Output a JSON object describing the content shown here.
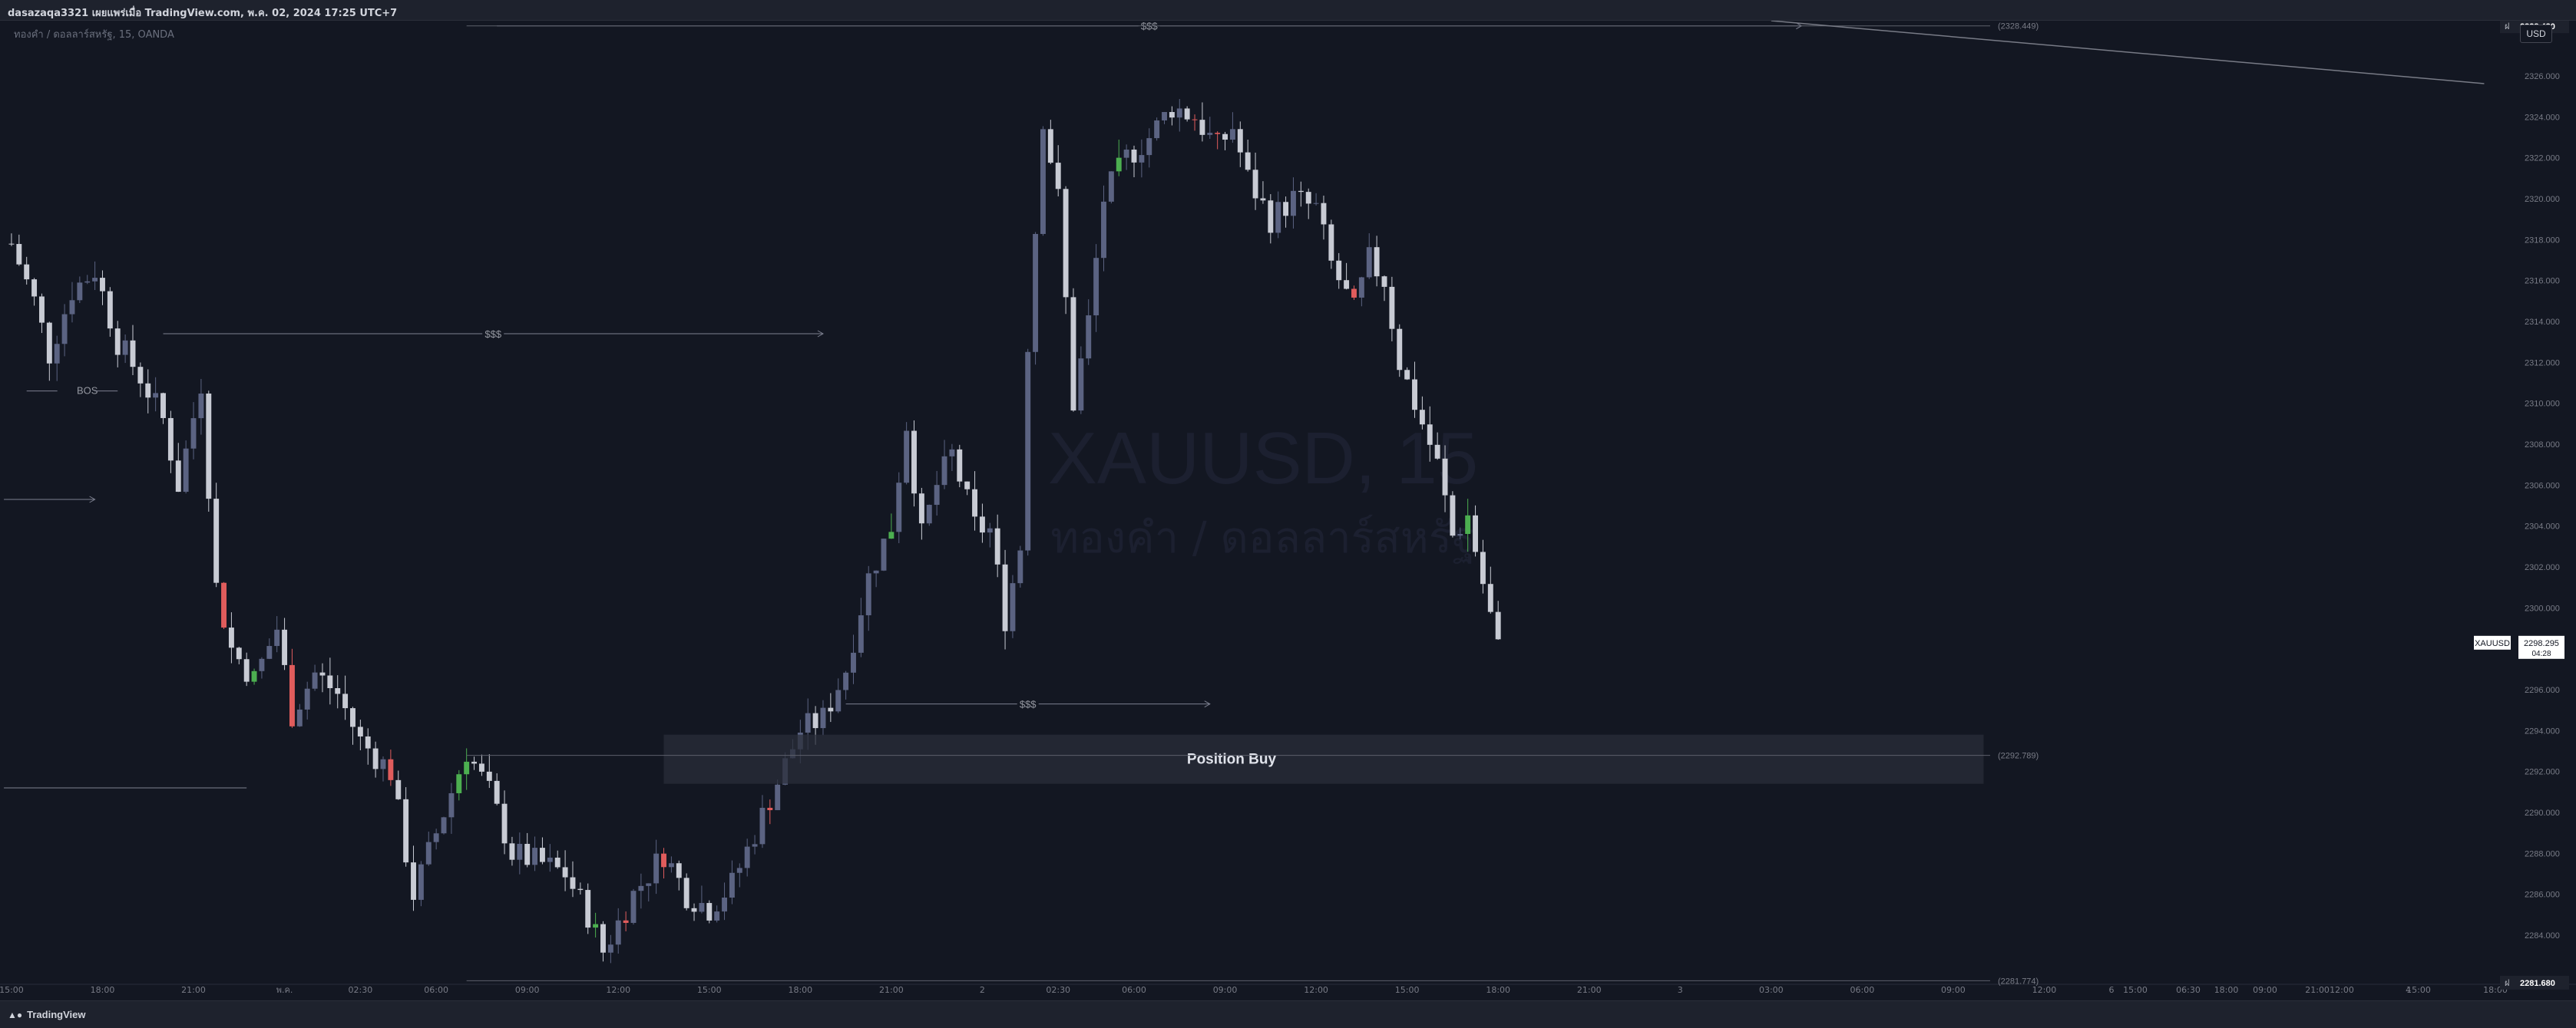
{
  "header": {
    "title": "dasazaqa3321 เผยแพร่เมื่อ TradingView.com, พ.ค. 02, 2024 17:25 UTC+7"
  },
  "legend": {
    "symbol_line": "ทองคำ / ดอลลาร์สหรัฐ, 15, OANDA"
  },
  "currency_button": "USD",
  "footer": {
    "brand": "TradingView"
  },
  "colors": {
    "background": "#131722",
    "candle_up": "#5b6382",
    "candle_down": "#c8cbd4",
    "accent_up": "#4caf50",
    "accent_down": "#e05c5c",
    "text": "#d1d4dc"
  },
  "chart_data": {
    "type": "candlestick",
    "symbol": "XAUUSD",
    "interval": "15",
    "exchange": "OANDA",
    "watermark": {
      "line1": "XAUUSD, 15",
      "line2": "ทองคำ / ดอลลาร์สหรัฐ"
    },
    "ylim": [
      2281.6,
      2328.7
    ],
    "yticks": [
      2284,
      2286,
      2288,
      2290,
      2292,
      2294,
      2296,
      2298,
      2300,
      2302,
      2304,
      2306,
      2308,
      2310,
      2312,
      2314,
      2316,
      2318,
      2320,
      2322,
      2324,
      2326
    ],
    "ytick_labels": [
      "2284.000",
      "2286.000",
      "2288.000",
      "2290.000",
      "2292.000",
      "2294.000",
      "2296.000",
      "2298.000",
      "2300.000",
      "2302.000",
      "2304.000",
      "2306.000",
      "2308.000",
      "2310.000",
      "2312.000",
      "2314.000",
      "2316.000",
      "2318.000",
      "2320.000",
      "2322.000",
      "2324.000",
      "2326.000"
    ],
    "xaxis": {
      "bar_range": [
        0,
        330
      ],
      "ticks": [
        {
          "bar": 0,
          "label": "15:00"
        },
        {
          "bar": 12,
          "label": "18:00"
        },
        {
          "bar": 24,
          "label": "21:00"
        },
        {
          "bar": 36,
          "label": "พ.ค."
        },
        {
          "bar": 46,
          "label": "02:30"
        },
        {
          "bar": 56,
          "label": "06:00"
        },
        {
          "bar": 68,
          "label": "09:00"
        },
        {
          "bar": 80,
          "label": "12:00"
        },
        {
          "bar": 92,
          "label": "15:00"
        },
        {
          "bar": 104,
          "label": "18:00"
        },
        {
          "bar": 116,
          "label": "21:00"
        },
        {
          "bar": 128,
          "label": "2"
        },
        {
          "bar": 138,
          "label": "02:30"
        },
        {
          "bar": 148,
          "label": "06:00"
        },
        {
          "bar": 160,
          "label": "09:00"
        },
        {
          "bar": 172,
          "label": "12:00"
        },
        {
          "bar": 184,
          "label": "15:00"
        },
        {
          "bar": 196,
          "label": "18:00"
        },
        {
          "bar": 208,
          "label": "21:00"
        },
        {
          "bar": 220,
          "label": "3"
        },
        {
          "bar": 232,
          "label": "03:00"
        },
        {
          "bar": 244,
          "label": "06:00"
        },
        {
          "bar": 256,
          "label": "09:00"
        },
        {
          "bar": 268,
          "label": "12:00"
        },
        {
          "bar": 280,
          "label": "15:00"
        },
        {
          "bar": 292,
          "label": "18:00"
        },
        {
          "bar": 304,
          "label": "21:00"
        },
        {
          "bar": 316,
          "label": "4"
        }
      ],
      "extra_ticks_right": [
        "6",
        "06:30",
        "09:00",
        "12:00",
        "15:00",
        "18:00"
      ]
    },
    "close_path": [
      [
        0,
        2317.8
      ],
      [
        3,
        2315.0
      ],
      [
        5,
        2312.4
      ],
      [
        8,
        2315.5
      ],
      [
        11,
        2316.5
      ],
      [
        14,
        2313.0
      ],
      [
        17,
        2311.3
      ],
      [
        20,
        2309.2
      ],
      [
        22,
        2306.0
      ],
      [
        25,
        2311.0
      ],
      [
        27,
        2301.0
      ],
      [
        29,
        2298.0
      ],
      [
        32,
        2296.5
      ],
      [
        35,
        2299.0
      ],
      [
        37,
        2294.8
      ],
      [
        40,
        2296.8
      ],
      [
        43,
        2295.8
      ],
      [
        46,
        2293.5
      ],
      [
        50,
        2292.0
      ],
      [
        53,
        2286.0
      ],
      [
        57,
        2290.0
      ],
      [
        60,
        2293.0
      ],
      [
        63,
        2291.0
      ],
      [
        66,
        2288.0
      ],
      [
        70,
        2287.5
      ],
      [
        73,
        2287.0
      ],
      [
        76,
        2285.0
      ],
      [
        78,
        2283.2
      ],
      [
        82,
        2286.0
      ],
      [
        86,
        2288.0
      ],
      [
        89,
        2286.0
      ],
      [
        92,
        2285.3
      ],
      [
        95,
        2286.5
      ],
      [
        98,
        2289.0
      ],
      [
        101,
        2291.5
      ],
      [
        104,
        2294.0
      ],
      [
        107,
        2294.6
      ],
      [
        110,
        2297.0
      ],
      [
        113,
        2301.5
      ],
      [
        116,
        2304.0
      ],
      [
        118,
        2309.0
      ],
      [
        120,
        2303.5
      ],
      [
        122,
        2306.0
      ],
      [
        124,
        2307.5
      ],
      [
        127,
        2304.0
      ],
      [
        129,
        2303.8
      ],
      [
        131,
        2299.5
      ],
      [
        133,
        2303.0
      ],
      [
        134,
        2313.0
      ],
      [
        136,
        2324.0
      ],
      [
        138,
        2320.0
      ],
      [
        140,
        2310.0
      ],
      [
        142,
        2314.0
      ],
      [
        144,
        2320.0
      ],
      [
        147,
        2322.0
      ],
      [
        150,
        2323.0
      ],
      [
        153,
        2324.5
      ],
      [
        156,
        2324.0
      ],
      [
        159,
        2322.5
      ],
      [
        161,
        2323.5
      ],
      [
        163,
        2321.0
      ],
      [
        166,
        2319.0
      ],
      [
        169,
        2320.0
      ],
      [
        172,
        2319.5
      ],
      [
        174,
        2316.8
      ],
      [
        177,
        2314.5
      ],
      [
        179,
        2317.0
      ],
      [
        181,
        2316.0
      ],
      [
        183,
        2312.0
      ],
      [
        186,
        2309.0
      ],
      [
        188,
        2307.0
      ],
      [
        190,
        2303.5
      ],
      [
        192,
        2304.5
      ],
      [
        194,
        2301.2
      ],
      [
        196,
        2298.0
      ]
    ],
    "annotations": [
      {
        "type": "label",
        "text": "BOS",
        "x_bar": 10,
        "y": 2310.6
      },
      {
        "type": "liquidity",
        "text": "$$$",
        "x1_bar": 64,
        "x2_bar": 236,
        "y": 2328.449
      },
      {
        "type": "liquidity",
        "text": "$$$",
        "x1_bar": 20,
        "x2_bar": 107,
        "y": 2313.4
      },
      {
        "type": "liquidity",
        "text": "$$$",
        "x1_bar": 110,
        "x2_bar": 158,
        "y": 2295.3
      },
      {
        "type": "arrow",
        "x1_bar": -1,
        "x2_bar": 11,
        "y": 2305.3
      },
      {
        "type": "hline",
        "x1_bar": -1,
        "x2_bar": 31,
        "y": 2291.2
      },
      {
        "type": "hline",
        "x1_bar": 2,
        "x2_bar": 14,
        "y": 2310.6
      },
      {
        "type": "zone",
        "text": "Position Buy",
        "x1_bar": 86,
        "x2_bar": 260,
        "y1": 2293.8,
        "y2": 2291.4
      },
      {
        "type": "level",
        "label": "(2328.449)",
        "value": 2328.449,
        "x1_bar": 60
      },
      {
        "type": "level",
        "label": "(2292.789)",
        "value": 2292.789,
        "x1_bar": 60
      },
      {
        "type": "level",
        "label": "(2281.774)",
        "value": 2281.774,
        "x1_bar": 60
      },
      {
        "type": "trendline",
        "p1": [
          232,
          2328.7
        ],
        "p2": [
          326,
          2326.0
        ]
      }
    ],
    "price_labels": [
      {
        "value": 2328.43,
        "text": "2328.430",
        "prefix": "ฝ"
      },
      {
        "value": 2298.295,
        "text": "2298.295",
        "sub": "04:28",
        "symbol": "XAUUSD"
      },
      {
        "value": 2281.68,
        "text": "2281.680",
        "prefix": "ฝ"
      }
    ]
  }
}
